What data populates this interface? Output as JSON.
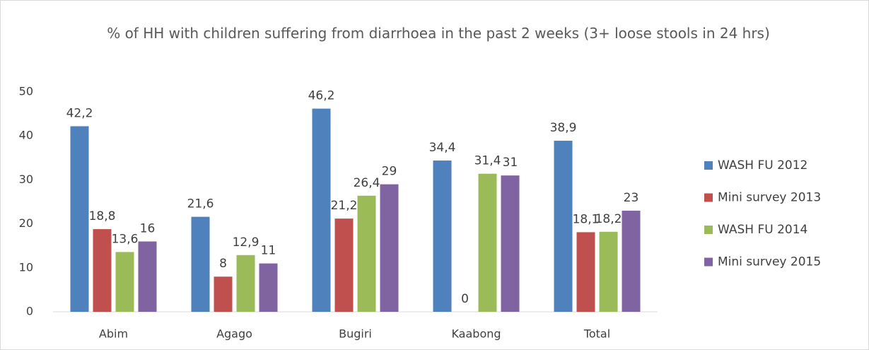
{
  "chart_data": {
    "type": "bar",
    "title": "% of HH with children suffering from diarrhoea in the past 2 weeks (3+ loose stools in 24 hrs)",
    "categories": [
      "Abim",
      "Agago",
      "Bugiri",
      "Kaabong",
      "Total"
    ],
    "series": [
      {
        "name": "WASH FU 2012",
        "color": "#4f81bd",
        "values": [
          42.2,
          21.6,
          46.2,
          34.4,
          38.9
        ],
        "value_labels": [
          "42,2",
          "21,6",
          "46,2",
          "34,4",
          "38,9"
        ]
      },
      {
        "name": "Mini survey 2013",
        "color": "#c0504d",
        "values": [
          18.8,
          8,
          21.2,
          0,
          18.1
        ],
        "value_labels": [
          "18,8",
          "8",
          "21,2",
          "0",
          "18,1"
        ]
      },
      {
        "name": "WASH FU 2014",
        "color": "#9bbb59",
        "values": [
          13.6,
          12.9,
          26.4,
          31.4,
          18.2
        ],
        "value_labels": [
          "13,6",
          "12,9",
          "26,4",
          "31,4",
          "18,2"
        ]
      },
      {
        "name": "Mini survey 2015",
        "color": "#8064a2",
        "values": [
          16,
          11,
          29,
          31,
          23
        ],
        "value_labels": [
          "16",
          "11",
          "29",
          "31",
          "23"
        ]
      }
    ],
    "ylim": [
      0,
      50
    ],
    "yticks": [
      0,
      10,
      20,
      30,
      40,
      50
    ],
    "grid": false,
    "legend": "right"
  }
}
